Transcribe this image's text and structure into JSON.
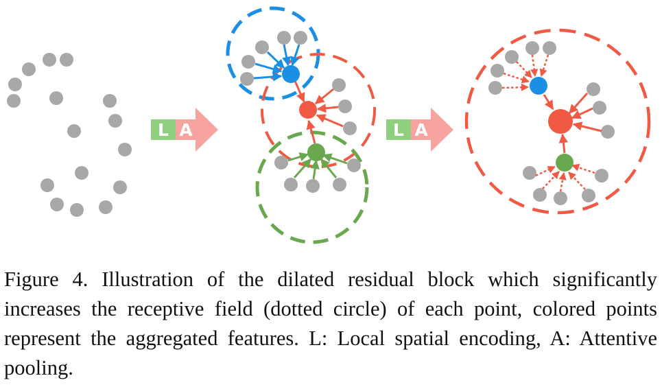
{
  "caption": "Figure 4. Illustration of the dilated residual block which significantly increases the receptive field (dotted circle) of each point, colored points represent the aggregated features. L: Local spatial encoding, A: Attentive pooling.",
  "la_blocks": [
    {
      "l": "L",
      "a": "A"
    },
    {
      "l": "L",
      "a": "A"
    }
  ],
  "colors": {
    "gray_point": "#a8a8a8",
    "blue": "#1a8fe3",
    "red": "#f05a45",
    "green": "#6aa84f",
    "l_box": "#8fcf7e",
    "a_arrow": "#f7a4a0"
  }
}
